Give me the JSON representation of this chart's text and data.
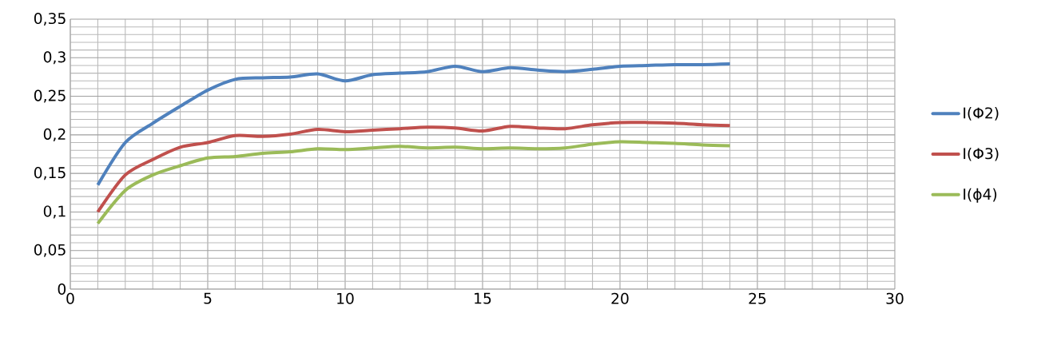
{
  "chart_data": {
    "type": "line",
    "x": [
      1,
      2,
      3,
      4,
      5,
      6,
      7,
      8,
      9,
      10,
      11,
      12,
      13,
      14,
      15,
      16,
      17,
      18,
      19,
      20,
      21,
      22,
      23,
      24
    ],
    "series": [
      {
        "name": "I(Φ2)",
        "color": "#4f81bd",
        "values": [
          0.135,
          0.19,
          0.215,
          0.237,
          0.258,
          0.272,
          0.274,
          0.275,
          0.279,
          0.27,
          0.278,
          0.28,
          0.282,
          0.289,
          0.282,
          0.287,
          0.284,
          0.282,
          0.285,
          0.289,
          0.29,
          0.291,
          0.291,
          0.292
        ]
      },
      {
        "name": "I(Φ3)",
        "color": "#c0504d",
        "values": [
          0.1,
          0.148,
          0.168,
          0.184,
          0.19,
          0.199,
          0.198,
          0.201,
          0.207,
          0.204,
          0.206,
          0.208,
          0.21,
          0.209,
          0.205,
          0.211,
          0.209,
          0.208,
          0.213,
          0.216,
          0.216,
          0.215,
          0.213,
          0.212
        ]
      },
      {
        "name": "I(ϕ4)",
        "color": "#9bbb59",
        "values": [
          0.085,
          0.128,
          0.148,
          0.16,
          0.17,
          0.172,
          0.176,
          0.178,
          0.182,
          0.181,
          0.183,
          0.185,
          0.183,
          0.184,
          0.182,
          0.183,
          0.182,
          0.183,
          0.188,
          0.191,
          0.19,
          0.189,
          0.187,
          0.186
        ]
      }
    ],
    "xlim": [
      0,
      30
    ],
    "xticks": [
      0,
      5,
      10,
      15,
      20,
      25,
      30
    ],
    "ylim": [
      0,
      0.35
    ],
    "yticks": [
      {
        "value": 0,
        "label": "0"
      },
      {
        "value": 0.05,
        "label": "0,05"
      },
      {
        "value": 0.1,
        "label": "0,1"
      },
      {
        "value": 0.15,
        "label": "0,15"
      },
      {
        "value": 0.2,
        "label": "0,2"
      },
      {
        "value": 0.25,
        "label": "0,25"
      },
      {
        "value": 0.3,
        "label": "0,3"
      },
      {
        "value": 0.35,
        "label": "0,35"
      }
    ],
    "grid": true,
    "legend": "right",
    "marker": "none",
    "line_style": "solid"
  }
}
